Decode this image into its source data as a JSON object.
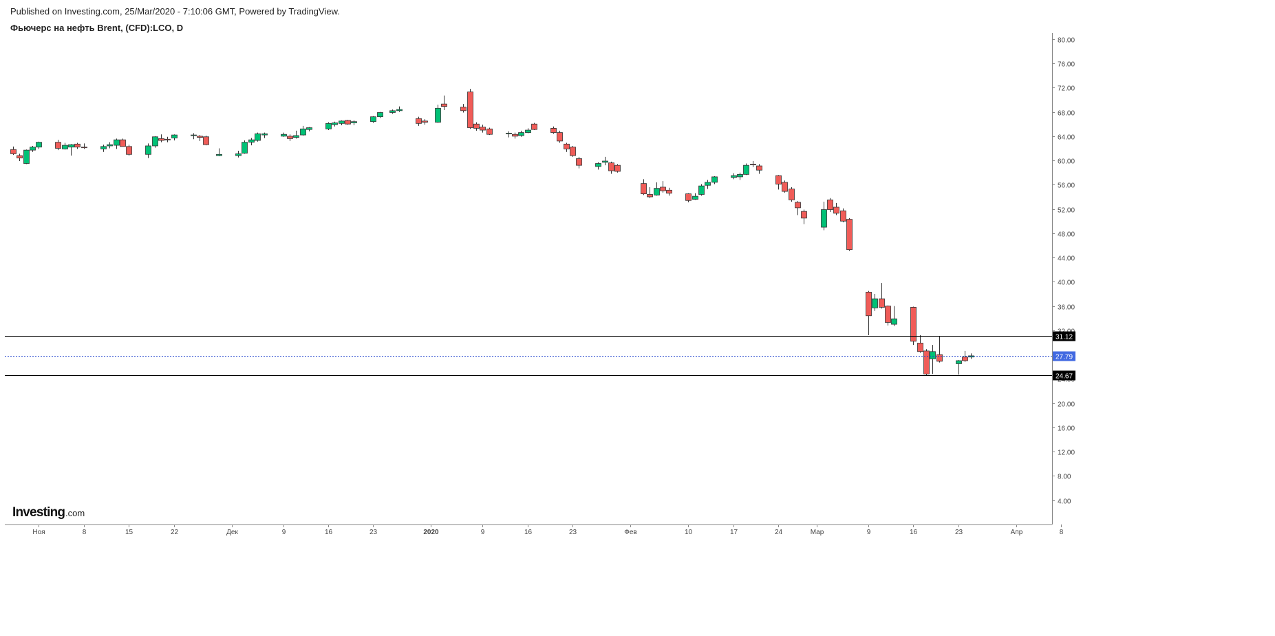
{
  "header": {
    "published": "Published on Investing.com, 25/Mar/2020 - 7:10:06 GMT, Powered by TradingView.",
    "title": "Фьючерс на нефть Brent, (CFD):LCO, D"
  },
  "logo": {
    "brand": "Investing",
    "suffix": ".com"
  },
  "colors": {
    "background": "#f0ffd4",
    "up": "#00c176",
    "down": "#f05c58",
    "wick": "#333333",
    "current_line": "#2244cc",
    "current_badge": "#4169e1",
    "level_badge": "#000000"
  },
  "chart_data": {
    "type": "candlestick",
    "title": "Фьючерс на нефть Brent, (CFD):LCO, D",
    "ylim": [
      0,
      81
    ],
    "y_ticks": [
      "4.00",
      "8.00",
      "12.00",
      "16.00",
      "20.00",
      "24.00",
      "28.00",
      "32.00",
      "36.00",
      "40.00",
      "44.00",
      "48.00",
      "52.00",
      "56.00",
      "60.00",
      "64.00",
      "68.00",
      "72.00",
      "76.00",
      "80.00"
    ],
    "x_ticks": [
      {
        "label": "Ноя",
        "date": "2019-11-01"
      },
      {
        "label": "8",
        "date": "2019-11-08"
      },
      {
        "label": "15",
        "date": "2019-11-15"
      },
      {
        "label": "22",
        "date": "2019-11-22"
      },
      {
        "label": "Дек",
        "date": "2019-12-01"
      },
      {
        "label": "9",
        "date": "2019-12-09"
      },
      {
        "label": "16",
        "date": "2019-12-16"
      },
      {
        "label": "23",
        "date": "2019-12-23"
      },
      {
        "label": "2020",
        "date": "2020-01-01",
        "bold": true
      },
      {
        "label": "9",
        "date": "2020-01-09"
      },
      {
        "label": "16",
        "date": "2020-01-16"
      },
      {
        "label": "23",
        "date": "2020-01-23"
      },
      {
        "label": "Фев",
        "date": "2020-02-01"
      },
      {
        "label": "10",
        "date": "2020-02-10"
      },
      {
        "label": "17",
        "date": "2020-02-17"
      },
      {
        "label": "24",
        "date": "2020-02-24"
      },
      {
        "label": "Мар",
        "date": "2020-03-01"
      },
      {
        "label": "9",
        "date": "2020-03-09"
      },
      {
        "label": "16",
        "date": "2020-03-16"
      },
      {
        "label": "23",
        "date": "2020-03-23"
      },
      {
        "label": "Апр",
        "date": "2020-04-01"
      },
      {
        "label": "8",
        "date": "2020-04-08"
      }
    ],
    "horizontal_levels": [
      {
        "value": 31.12,
        "label": "31.12"
      },
      {
        "value": 24.67,
        "label": "24.67"
      }
    ],
    "current_price": {
      "value": 27.79,
      "label": "27.79"
    },
    "candles": [
      {
        "date": "2019-10-28",
        "o": 61.8,
        "h": 62.3,
        "l": 60.9,
        "c": 61.1
      },
      {
        "date": "2019-10-29",
        "o": 60.8,
        "h": 61.1,
        "l": 59.9,
        "c": 60.4
      },
      {
        "date": "2019-10-30",
        "o": 59.5,
        "h": 61.8,
        "l": 59.4,
        "c": 61.7
      },
      {
        "date": "2019-10-31",
        "o": 61.7,
        "h": 62.4,
        "l": 61.4,
        "c": 62.2
      },
      {
        "date": "2019-11-01",
        "o": 62.2,
        "h": 63.1,
        "l": 61.9,
        "c": 63.0
      },
      {
        "date": "2019-11-04",
        "o": 63.0,
        "h": 63.4,
        "l": 61.7,
        "c": 62.0
      },
      {
        "date": "2019-11-05",
        "o": 61.9,
        "h": 62.9,
        "l": 61.8,
        "c": 62.5
      },
      {
        "date": "2019-11-06",
        "o": 62.2,
        "h": 62.7,
        "l": 60.8,
        "c": 62.6
      },
      {
        "date": "2019-11-07",
        "o": 62.7,
        "h": 62.9,
        "l": 61.9,
        "c": 62.2
      },
      {
        "date": "2019-11-08",
        "o": 62.2,
        "h": 62.8,
        "l": 61.9,
        "c": 62.1
      },
      {
        "date": "2019-11-11",
        "o": 61.9,
        "h": 62.6,
        "l": 61.4,
        "c": 62.3
      },
      {
        "date": "2019-11-12",
        "o": 62.4,
        "h": 63.0,
        "l": 62.0,
        "c": 62.6
      },
      {
        "date": "2019-11-13",
        "o": 62.5,
        "h": 63.6,
        "l": 61.9,
        "c": 63.4
      },
      {
        "date": "2019-11-14",
        "o": 63.4,
        "h": 63.6,
        "l": 62.3,
        "c": 62.3
      },
      {
        "date": "2019-11-15",
        "o": 62.3,
        "h": 62.6,
        "l": 60.8,
        "c": 61.0
      },
      {
        "date": "2019-11-18",
        "o": 61.0,
        "h": 62.8,
        "l": 60.4,
        "c": 62.4
      },
      {
        "date": "2019-11-19",
        "o": 62.4,
        "h": 64.0,
        "l": 62.1,
        "c": 63.9
      },
      {
        "date": "2019-11-20",
        "o": 63.6,
        "h": 64.3,
        "l": 63.0,
        "c": 63.3
      },
      {
        "date": "2019-11-21",
        "o": 63.5,
        "h": 63.9,
        "l": 63.0,
        "c": 63.4
      },
      {
        "date": "2019-11-22",
        "o": 63.7,
        "h": 64.3,
        "l": 63.3,
        "c": 64.2
      },
      {
        "date": "2019-11-25",
        "o": 64.1,
        "h": 64.5,
        "l": 63.5,
        "c": 64.2
      },
      {
        "date": "2019-11-26",
        "o": 64.0,
        "h": 64.2,
        "l": 63.2,
        "c": 63.8
      },
      {
        "date": "2019-11-27",
        "o": 63.9,
        "h": 64.1,
        "l": 62.5,
        "c": 62.6
      },
      {
        "date": "2019-11-29",
        "o": 60.8,
        "h": 62.0,
        "l": 60.7,
        "c": 61.0
      },
      {
        "date": "2019-12-02",
        "o": 60.8,
        "h": 61.6,
        "l": 60.5,
        "c": 61.1
      },
      {
        "date": "2019-12-03",
        "o": 61.2,
        "h": 63.3,
        "l": 61.1,
        "c": 63.0
      },
      {
        "date": "2019-12-04",
        "o": 63.0,
        "h": 63.7,
        "l": 62.5,
        "c": 63.4
      },
      {
        "date": "2019-12-05",
        "o": 63.3,
        "h": 64.6,
        "l": 63.1,
        "c": 64.4
      },
      {
        "date": "2019-12-06",
        "o": 64.2,
        "h": 64.6,
        "l": 63.7,
        "c": 64.4
      },
      {
        "date": "2019-12-09",
        "o": 64.0,
        "h": 64.6,
        "l": 63.9,
        "c": 64.3
      },
      {
        "date": "2019-12-10",
        "o": 64.0,
        "h": 64.3,
        "l": 63.2,
        "c": 63.6
      },
      {
        "date": "2019-12-11",
        "o": 63.8,
        "h": 64.9,
        "l": 63.6,
        "c": 64.1
      },
      {
        "date": "2019-12-12",
        "o": 64.2,
        "h": 65.7,
        "l": 64.1,
        "c": 65.2
      },
      {
        "date": "2019-12-13",
        "o": 65.1,
        "h": 65.5,
        "l": 64.8,
        "c": 65.4
      },
      {
        "date": "2019-12-16",
        "o": 65.2,
        "h": 66.3,
        "l": 65.0,
        "c": 66.1
      },
      {
        "date": "2019-12-17",
        "o": 65.9,
        "h": 66.4,
        "l": 65.6,
        "c": 66.2
      },
      {
        "date": "2019-12-18",
        "o": 66.1,
        "h": 66.6,
        "l": 65.8,
        "c": 66.5
      },
      {
        "date": "2019-12-19",
        "o": 66.6,
        "h": 66.7,
        "l": 65.9,
        "c": 66.0
      },
      {
        "date": "2019-12-20",
        "o": 66.2,
        "h": 66.6,
        "l": 65.8,
        "c": 66.4
      },
      {
        "date": "2019-12-23",
        "o": 66.4,
        "h": 67.3,
        "l": 66.2,
        "c": 67.2
      },
      {
        "date": "2019-12-24",
        "o": 67.2,
        "h": 68.0,
        "l": 67.0,
        "c": 67.9
      },
      {
        "date": "2019-12-26",
        "o": 67.9,
        "h": 68.4,
        "l": 67.7,
        "c": 68.2
      },
      {
        "date": "2019-12-27",
        "o": 68.2,
        "h": 68.9,
        "l": 68.0,
        "c": 68.4
      },
      {
        "date": "2019-12-30",
        "o": 66.9,
        "h": 67.2,
        "l": 65.7,
        "c": 66.1
      },
      {
        "date": "2019-12-31",
        "o": 66.5,
        "h": 66.8,
        "l": 65.9,
        "c": 66.3
      },
      {
        "date": "2020-01-02",
        "o": 66.3,
        "h": 69.2,
        "l": 66.2,
        "c": 68.6
      },
      {
        "date": "2020-01-03",
        "o": 69.3,
        "h": 70.7,
        "l": 68.3,
        "c": 68.9
      },
      {
        "date": "2020-01-06",
        "o": 68.8,
        "h": 69.3,
        "l": 67.9,
        "c": 68.2
      },
      {
        "date": "2020-01-07",
        "o": 71.3,
        "h": 71.8,
        "l": 65.2,
        "c": 65.4
      },
      {
        "date": "2020-01-08",
        "o": 66.0,
        "h": 66.3,
        "l": 64.9,
        "c": 65.3
      },
      {
        "date": "2020-01-09",
        "o": 65.5,
        "h": 65.9,
        "l": 64.6,
        "c": 65.0
      },
      {
        "date": "2020-01-10",
        "o": 65.2,
        "h": 65.4,
        "l": 64.2,
        "c": 64.3
      },
      {
        "date": "2020-01-13",
        "o": 64.4,
        "h": 64.8,
        "l": 63.8,
        "c": 64.5
      },
      {
        "date": "2020-01-14",
        "o": 64.3,
        "h": 64.6,
        "l": 63.6,
        "c": 64.0
      },
      {
        "date": "2020-01-15",
        "o": 64.1,
        "h": 64.9,
        "l": 63.9,
        "c": 64.6
      },
      {
        "date": "2020-01-16",
        "o": 64.6,
        "h": 65.3,
        "l": 64.5,
        "c": 65.0
      },
      {
        "date": "2020-01-17",
        "o": 66.0,
        "h": 66.2,
        "l": 65.0,
        "c": 65.1
      },
      {
        "date": "2020-01-20",
        "o": 65.3,
        "h": 65.6,
        "l": 64.4,
        "c": 64.6
      },
      {
        "date": "2020-01-21",
        "o": 64.6,
        "h": 64.9,
        "l": 62.9,
        "c": 63.2
      },
      {
        "date": "2020-01-22",
        "o": 62.7,
        "h": 62.9,
        "l": 61.4,
        "c": 61.9
      },
      {
        "date": "2020-01-23",
        "o": 62.2,
        "h": 62.4,
        "l": 60.6,
        "c": 60.8
      },
      {
        "date": "2020-01-24",
        "o": 60.3,
        "h": 60.6,
        "l": 58.7,
        "c": 59.2
      },
      {
        "date": "2020-01-27",
        "o": 59.0,
        "h": 59.7,
        "l": 58.5,
        "c": 59.5
      },
      {
        "date": "2020-01-28",
        "o": 59.7,
        "h": 60.6,
        "l": 59.2,
        "c": 59.9
      },
      {
        "date": "2020-01-29",
        "o": 59.6,
        "h": 59.8,
        "l": 57.8,
        "c": 58.3
      },
      {
        "date": "2020-01-30",
        "o": 59.2,
        "h": 59.4,
        "l": 58.0,
        "c": 58.2
      },
      {
        "date": "2020-02-03",
        "o": 56.2,
        "h": 56.9,
        "l": 54.3,
        "c": 54.5
      },
      {
        "date": "2020-02-04",
        "o": 54.4,
        "h": 55.6,
        "l": 53.8,
        "c": 54.0
      },
      {
        "date": "2020-02-05",
        "o": 54.3,
        "h": 56.4,
        "l": 54.2,
        "c": 55.4
      },
      {
        "date": "2020-02-06",
        "o": 55.6,
        "h": 56.6,
        "l": 54.7,
        "c": 55.0
      },
      {
        "date": "2020-02-07",
        "o": 55.1,
        "h": 55.5,
        "l": 54.2,
        "c": 54.6
      },
      {
        "date": "2020-02-10",
        "o": 54.5,
        "h": 54.6,
        "l": 53.1,
        "c": 53.4
      },
      {
        "date": "2020-02-11",
        "o": 53.6,
        "h": 54.6,
        "l": 53.5,
        "c": 54.1
      },
      {
        "date": "2020-02-12",
        "o": 54.4,
        "h": 56.1,
        "l": 54.2,
        "c": 55.8
      },
      {
        "date": "2020-02-13",
        "o": 55.9,
        "h": 56.8,
        "l": 55.3,
        "c": 56.4
      },
      {
        "date": "2020-02-14",
        "o": 56.4,
        "h": 57.4,
        "l": 56.1,
        "c": 57.3
      },
      {
        "date": "2020-02-17",
        "o": 57.2,
        "h": 57.9,
        "l": 56.9,
        "c": 57.5
      },
      {
        "date": "2020-02-18",
        "o": 57.3,
        "h": 58.0,
        "l": 56.8,
        "c": 57.7
      },
      {
        "date": "2020-02-19",
        "o": 57.7,
        "h": 59.5,
        "l": 57.6,
        "c": 59.2
      },
      {
        "date": "2020-02-20",
        "o": 59.4,
        "h": 59.9,
        "l": 58.9,
        "c": 59.3
      },
      {
        "date": "2020-02-21",
        "o": 59.1,
        "h": 59.4,
        "l": 57.8,
        "c": 58.4
      },
      {
        "date": "2020-02-24",
        "o": 57.5,
        "h": 57.6,
        "l": 55.2,
        "c": 56.1
      },
      {
        "date": "2020-02-25",
        "o": 56.4,
        "h": 56.7,
        "l": 54.7,
        "c": 54.9
      },
      {
        "date": "2020-02-26",
        "o": 55.3,
        "h": 55.6,
        "l": 53.2,
        "c": 53.5
      },
      {
        "date": "2020-02-27",
        "o": 53.1,
        "h": 53.3,
        "l": 51.0,
        "c": 52.2
      },
      {
        "date": "2020-02-28",
        "o": 51.6,
        "h": 51.9,
        "l": 49.5,
        "c": 50.5
      },
      {
        "date": "2020-03-02",
        "o": 49.0,
        "h": 53.2,
        "l": 48.5,
        "c": 51.9
      },
      {
        "date": "2020-03-03",
        "o": 53.5,
        "h": 53.8,
        "l": 51.5,
        "c": 51.9
      },
      {
        "date": "2020-03-04",
        "o": 52.3,
        "h": 53.0,
        "l": 51.0,
        "c": 51.3
      },
      {
        "date": "2020-03-05",
        "o": 51.7,
        "h": 52.1,
        "l": 49.8,
        "c": 50.0
      },
      {
        "date": "2020-03-06",
        "o": 50.3,
        "h": 50.5,
        "l": 45.1,
        "c": 45.3
      },
      {
        "date": "2020-03-09",
        "o": 38.3,
        "h": 38.5,
        "l": 31.2,
        "c": 34.4
      },
      {
        "date": "2020-03-10",
        "o": 35.7,
        "h": 38.0,
        "l": 35.2,
        "c": 37.2
      },
      {
        "date": "2020-03-11",
        "o": 37.2,
        "h": 39.8,
        "l": 35.6,
        "c": 35.8
      },
      {
        "date": "2020-03-12",
        "o": 36.0,
        "h": 36.1,
        "l": 32.8,
        "c": 33.3
      },
      {
        "date": "2020-03-13",
        "o": 33.0,
        "h": 36.0,
        "l": 32.7,
        "c": 33.9
      },
      {
        "date": "2020-03-16",
        "o": 35.8,
        "h": 35.9,
        "l": 29.6,
        "c": 30.2
      },
      {
        "date": "2020-03-17",
        "o": 29.9,
        "h": 31.2,
        "l": 28.3,
        "c": 28.5
      },
      {
        "date": "2020-03-18",
        "o": 28.6,
        "h": 28.9,
        "l": 24.6,
        "c": 24.8
      },
      {
        "date": "2020-03-19",
        "o": 27.3,
        "h": 29.6,
        "l": 24.8,
        "c": 28.5
      },
      {
        "date": "2020-03-20",
        "o": 28.0,
        "h": 31.0,
        "l": 26.7,
        "c": 26.9
      },
      {
        "date": "2020-03-23",
        "o": 26.5,
        "h": 27.1,
        "l": 24.7,
        "c": 27.0
      },
      {
        "date": "2020-03-24",
        "o": 27.6,
        "h": 28.6,
        "l": 26.8,
        "c": 27.0
      },
      {
        "date": "2020-03-25",
        "o": 27.6,
        "h": 28.2,
        "l": 27.3,
        "c": 27.8
      }
    ]
  }
}
